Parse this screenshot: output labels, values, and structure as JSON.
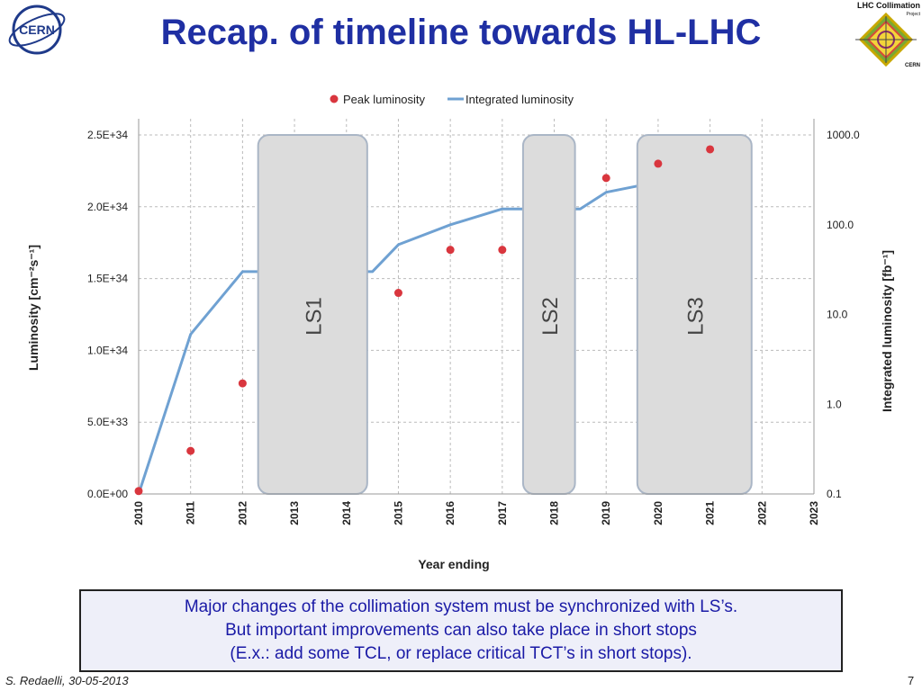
{
  "slide": {
    "title": "Recap. of timeline towards HL-LHC",
    "cern_logo_text": "CERN",
    "project_logo": {
      "line1": "LHC Collimation",
      "line2": "Project",
      "line3": "CERN"
    },
    "callout_lines": [
      "Major changes of the collimation system must be synchronized with LS’s.",
      "But important improvements can also take place in short stops",
      "(E.x.: add some TCL, or replace critical TCT’s in short stops)."
    ],
    "footer_author": "S. Redaelli, 30-05-2013",
    "page_number": "7"
  },
  "chart_data": {
    "type": "line",
    "xlabel": "Year ending",
    "ylabel": "Luminosity [cm⁻²s⁻¹]",
    "y2label": "Integrated luminosity [fb⁻¹]",
    "y2scale": "log",
    "legend_position": "top",
    "grid": true,
    "xlim": [
      2010,
      2023
    ],
    "ylim": [
      0,
      2.5e+34
    ],
    "y2lim": [
      0.1,
      1000
    ],
    "x_ticks": [
      "2010",
      "2011",
      "2012",
      "2013",
      "2014",
      "2015",
      "2016",
      "2017",
      "2018",
      "2019",
      "2020",
      "2021",
      "2022",
      "2023"
    ],
    "y_ticks": [
      "0.0E+00",
      "5.0E+33",
      "1.0E+34",
      "1.5E+34",
      "2.0E+34",
      "2.5E+34"
    ],
    "y2_ticks": [
      "0.1",
      "1.0",
      "10.0",
      "100.0",
      "1000.0"
    ],
    "series": [
      {
        "name": "Peak luminosity",
        "kind": "scatter",
        "color": "#d9363e",
        "axis": "left",
        "x": [
          2010,
          2011,
          2012,
          2015,
          2016,
          2017,
          2019,
          2020,
          2021
        ],
        "y": [
          2e+32,
          3e+33,
          7.7e+33,
          1.4e+34,
          1.7e+34,
          1.7e+34,
          2.2e+34,
          2.3e+34,
          2.4e+34
        ]
      },
      {
        "name": "Integrated luminosity",
        "kind": "line",
        "color": "#6fa1d2",
        "axis": "right",
        "x": [
          2010,
          2011,
          2012,
          2014.5,
          2015,
          2016,
          2017,
          2018.5,
          2019,
          2020,
          2021
        ],
        "y": [
          0.1,
          6,
          30,
          30,
          60,
          100,
          150,
          150,
          230,
          300,
          380
        ]
      }
    ],
    "shutdowns": [
      {
        "label": "LS1",
        "from": 2012.3,
        "to": 2014.4
      },
      {
        "label": "LS2",
        "from": 2017.4,
        "to": 2018.4
      },
      {
        "label": "LS3",
        "from": 2019.6,
        "to": 2021.8
      }
    ],
    "colors": {
      "shutdown_fill": "#dcdcdc",
      "shutdown_stroke": "#aab6c6",
      "grid": "#bbbbbb"
    }
  }
}
